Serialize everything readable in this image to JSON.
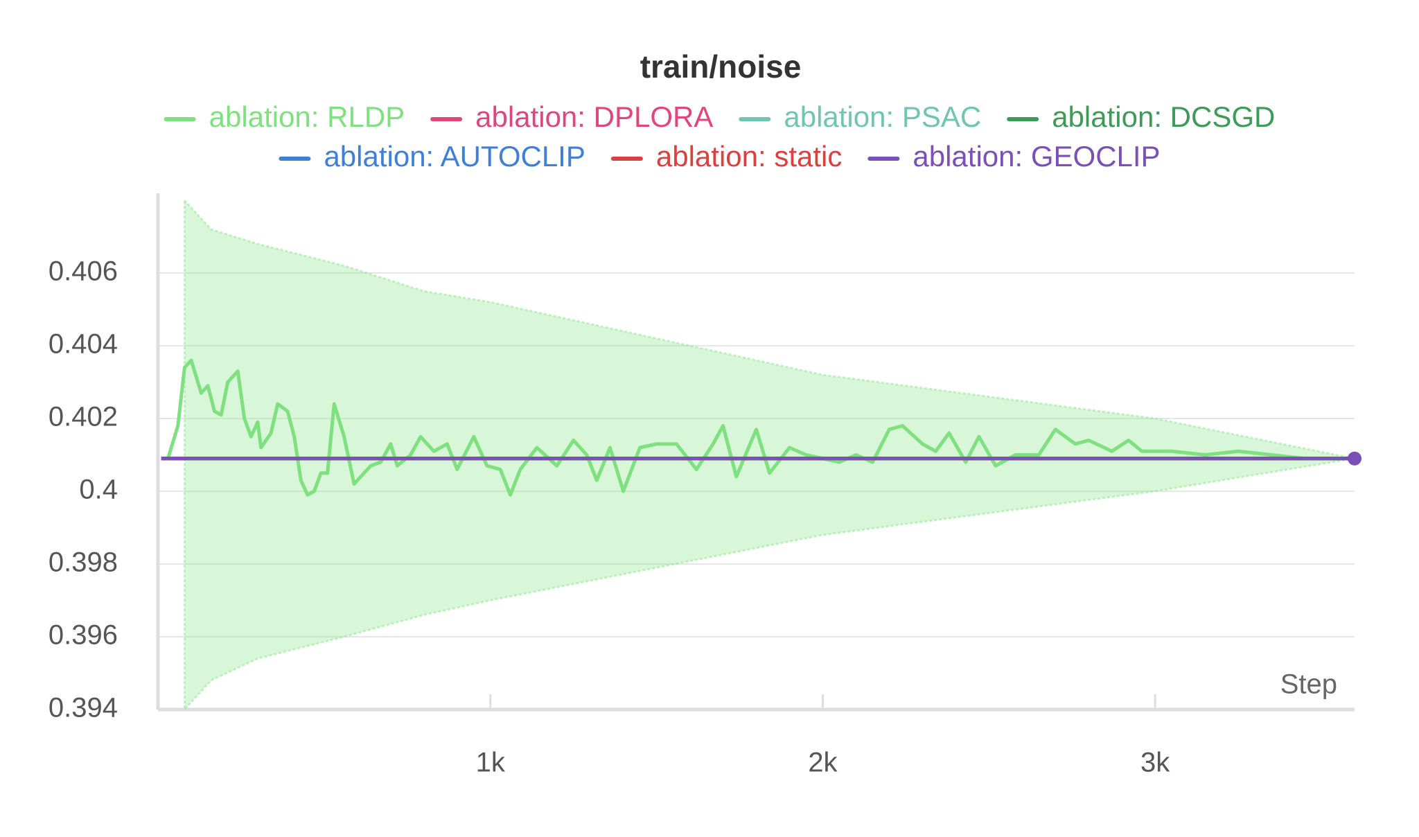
{
  "chart_data": {
    "type": "line",
    "title": "train/noise",
    "x_label": "Step",
    "xlim": [
      0,
      3600
    ],
    "xticks": [
      {
        "value": 1000,
        "label": "1k"
      },
      {
        "value": 2000,
        "label": "2k"
      },
      {
        "value": 3000,
        "label": "3k"
      }
    ],
    "ylim": [
      0.394,
      0.408
    ],
    "yticks": [
      0.394,
      0.396,
      0.398,
      0.4,
      0.402,
      0.404,
      0.406
    ],
    "grid": true,
    "legend": "top",
    "band": {
      "color": "#8ee68f",
      "x": [
        80,
        160,
        300,
        560,
        800,
        1000,
        2000,
        3000,
        3600
      ],
      "upper": [
        0.408,
        0.4072,
        0.4068,
        0.4062,
        0.4055,
        0.4052,
        0.4032,
        0.402,
        0.4009
      ],
      "lower": [
        0.394,
        0.3948,
        0.3954,
        0.396,
        0.3966,
        0.397,
        0.3988,
        0.4,
        0.4009
      ]
    },
    "series": [
      {
        "name": "ablation: RLDP",
        "color": "#7ee07f",
        "x": [
          30,
          60,
          80,
          100,
          130,
          150,
          170,
          190,
          210,
          240,
          260,
          280,
          300,
          310,
          340,
          360,
          390,
          410,
          430,
          450,
          470,
          490,
          510,
          530,
          560,
          590,
          610,
          640,
          670,
          700,
          720,
          760,
          790,
          830,
          870,
          900,
          950,
          990,
          1030,
          1060,
          1090,
          1140,
          1200,
          1250,
          1290,
          1320,
          1360,
          1400,
          1450,
          1500,
          1560,
          1620,
          1670,
          1700,
          1740,
          1800,
          1840,
          1900,
          1950,
          2000,
          2050,
          2100,
          2150,
          2200,
          2240,
          2300,
          2340,
          2380,
          2430,
          2470,
          2520,
          2580,
          2650,
          2700,
          2760,
          2800,
          2870,
          2920,
          2960,
          3050,
          3150,
          3250,
          3350,
          3450,
          3600
        ],
        "values": [
          0.4009,
          0.4018,
          0.4034,
          0.4036,
          0.4027,
          0.4029,
          0.4022,
          0.4021,
          0.403,
          0.4033,
          0.402,
          0.4015,
          0.4019,
          0.4012,
          0.4016,
          0.4024,
          0.4022,
          0.4015,
          0.4003,
          0.3999,
          0.4,
          0.4005,
          0.4005,
          0.4024,
          0.4015,
          0.4002,
          0.4004,
          0.4007,
          0.4008,
          0.4013,
          0.4007,
          0.401,
          0.4015,
          0.4011,
          0.4013,
          0.4006,
          0.4015,
          0.4007,
          0.4006,
          0.3999,
          0.4006,
          0.4012,
          0.4007,
          0.4014,
          0.401,
          0.4003,
          0.4012,
          0.4,
          0.4012,
          0.4013,
          0.4013,
          0.4006,
          0.4013,
          0.4018,
          0.4004,
          0.4017,
          0.4005,
          0.4012,
          0.401,
          0.4009,
          0.4008,
          0.401,
          0.4008,
          0.4017,
          0.4018,
          0.4013,
          0.4011,
          0.4016,
          0.4008,
          0.4015,
          0.4007,
          0.401,
          0.401,
          0.4017,
          0.4013,
          0.4014,
          0.4011,
          0.4014,
          0.4011,
          0.4011,
          0.401,
          0.4011,
          0.401,
          0.4009,
          0.4009
        ]
      },
      {
        "name": "ablation: DPLORA",
        "color": "#e0457b",
        "x": [
          10,
          3600
        ],
        "values": [
          0.4009,
          0.4009
        ]
      },
      {
        "name": "ablation: PSAC",
        "color": "#6fc5b0",
        "x": [
          10,
          3600
        ],
        "values": [
          0.4009,
          0.4009
        ]
      },
      {
        "name": "ablation: DCSGD",
        "color": "#3e9a57",
        "x": [
          10,
          3600
        ],
        "values": [
          0.4009,
          0.4009
        ]
      },
      {
        "name": "ablation: AUTOCLIP",
        "color": "#3f7fd8",
        "x": [
          10,
          3600
        ],
        "values": [
          0.4009,
          0.4009
        ]
      },
      {
        "name": "ablation: static",
        "color": "#d9413f",
        "x": [
          10,
          3600
        ],
        "values": [
          0.4009,
          0.4009
        ]
      },
      {
        "name": "ablation: GEOCLIP",
        "color": "#7b4fb8",
        "x": [
          10,
          3600
        ],
        "values": [
          0.4009,
          0.4009
        ]
      }
    ]
  }
}
